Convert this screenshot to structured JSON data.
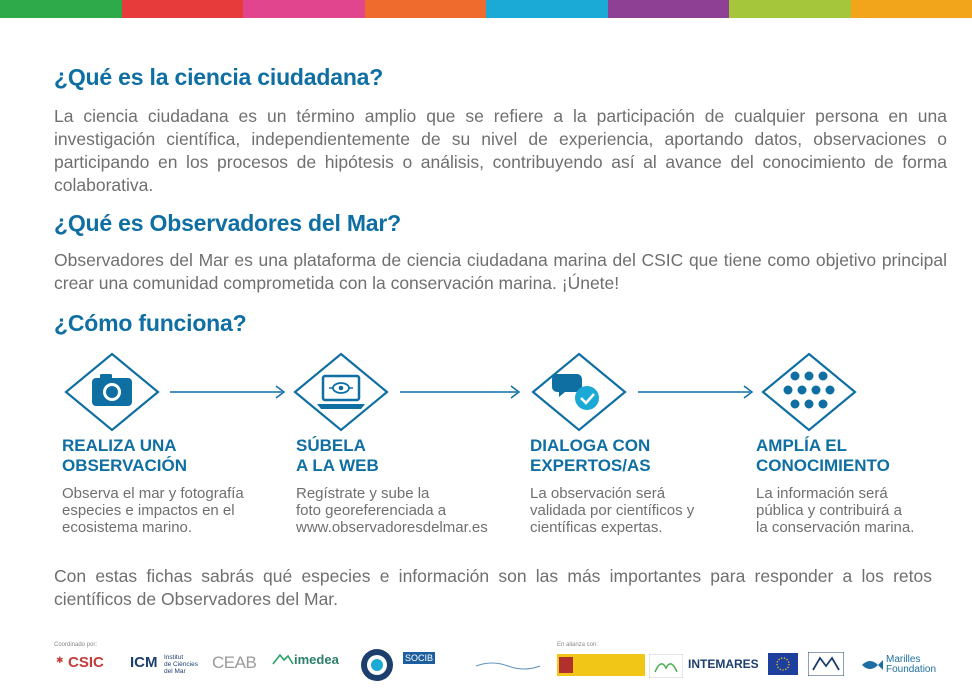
{
  "top_bar": {
    "colors": [
      "#2eaa4a",
      "#e63b3a",
      "#e0458d",
      "#ef6a2d",
      "#1ba9d6",
      "#8e4194",
      "#a5c53a",
      "#f2a51b"
    ]
  },
  "section1": {
    "heading": "¿Qué es la ciencia ciudadana?",
    "body": "La ciencia ciudadana es un término amplio que se refiere a la participación de cualquier persona en una investigación científica, independientemente de su nivel de experiencia, aportando datos, observaciones o participando en los procesos de hipótesis o análisis, contribuyendo así al avance del conocimiento de forma colaborativa."
  },
  "section2": {
    "heading": "¿Qué es Observadores del Mar?",
    "body": "Observadores del Mar es una plataforma de ciencia ciudadana marina del CSIC que tiene como objetivo  principal crear una comunidad comprometida con la conservación marina. ¡Únete!"
  },
  "section3": {
    "heading": "¿Cómo funciona?"
  },
  "steps": [
    {
      "icon": "camera-icon",
      "title_line1": "REALIZA UNA",
      "title_line2": "OBSERVACIÓN",
      "desc_line1": "Observa el mar y fotografía",
      "desc_line2": "especies e impactos en el",
      "desc_line3": "ecosistema marino."
    },
    {
      "icon": "laptop-upload-icon",
      "title_line1": "SÚBELA",
      "title_line2": "A LA WEB",
      "desc_line1": "Regístrate y sube la",
      "desc_line2": "foto georeferenciada a",
      "desc_line3": "www.observadoresdelmar.es"
    },
    {
      "icon": "chat-check-icon",
      "title_line1": "DIALOGA CON",
      "title_line2": "EXPERTOS/AS",
      "desc_line1": "La observación será",
      "desc_line2": "validada por científicos y",
      "desc_line3": "científicas expertas."
    },
    {
      "icon": "map-pins-icon",
      "title_line1": "AMPLÍA EL",
      "title_line2": "CONOCIMIENTO",
      "desc_line1": "La información será",
      "desc_line2": "pública y contribuirá a",
      "desc_line3": "la conservación marina."
    }
  ],
  "closing": {
    "body": "Con estas fichas sabrás qué especies e información son las más importantes para responder a los retos científicos de Observadores del Mar."
  },
  "footer": {
    "coordinated_label": "Coordinado por:",
    "alliance_label": "En alianza con:",
    "logos": {
      "csic": "CSIC",
      "icm_line1": "Institut",
      "icm_line2": "de Ciències",
      "icm_line3": "del Mar",
      "ceab": "CEAB",
      "imedea": "imedea",
      "socib": "SOCIB",
      "intemares": "INTEMARES",
      "marilles_line1": "Marilles",
      "marilles_line2": "Foundation"
    }
  },
  "colors": {
    "accent_blue": "#0f6fa3",
    "body_grey": "#6f6f6f"
  }
}
